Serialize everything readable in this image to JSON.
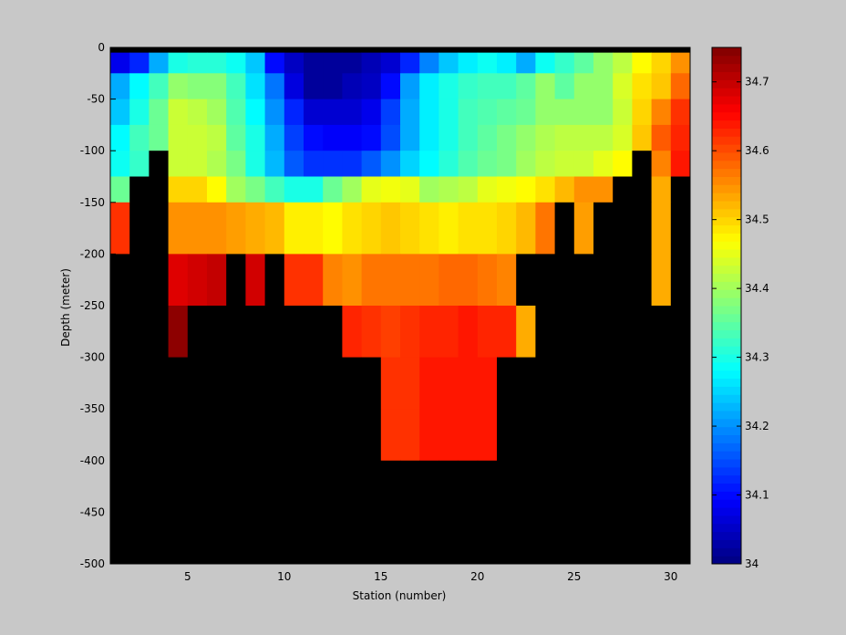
{
  "chart_data": {
    "type": "heatmap",
    "xlabel": "Station (number)",
    "ylabel": "Depth (meter)",
    "xlim": [
      1,
      31
    ],
    "ylim": [
      -500,
      0
    ],
    "x_ticks": [
      5,
      10,
      15,
      20,
      25,
      30
    ],
    "y_ticks": [
      0,
      -50,
      -100,
      -150,
      -200,
      -250,
      -300,
      -350,
      -400,
      -450,
      -500
    ],
    "colorbar": {
      "colormap": "jet",
      "range": [
        34.0,
        34.75
      ],
      "ticks": [
        34,
        34.1,
        34.2,
        34.3,
        34.4,
        34.5,
        34.6,
        34.7
      ],
      "tick_labels": [
        "34",
        "34.1",
        "34.2",
        "34.3",
        "34.4",
        "34.5",
        "34.6",
        "34.7"
      ]
    },
    "no_data_color": "#000000",
    "stations": [
      1,
      2,
      3,
      4,
      5,
      6,
      7,
      8,
      9,
      10,
      11,
      12,
      13,
      14,
      15,
      16,
      17,
      18,
      19,
      20,
      21,
      22,
      23,
      24,
      25,
      26,
      27,
      28,
      29,
      30
    ],
    "depth_bins": [
      {
        "top": 0,
        "bottom": -5
      },
      {
        "top": -5,
        "bottom": -25
      },
      {
        "top": -25,
        "bottom": -50
      },
      {
        "top": -50,
        "bottom": -75
      },
      {
        "top": -75,
        "bottom": -100
      },
      {
        "top": -100,
        "bottom": -125
      },
      {
        "top": -125,
        "bottom": -150
      },
      {
        "top": -150,
        "bottom": -200
      },
      {
        "top": -200,
        "bottom": -250
      },
      {
        "top": -250,
        "bottom": -300
      },
      {
        "top": -300,
        "bottom": -350
      },
      {
        "top": -350,
        "bottom": -400
      },
      {
        "top": -400,
        "bottom": -450
      },
      {
        "top": -450,
        "bottom": -500
      }
    ],
    "salinity": [
      [
        null,
        null,
        null,
        null,
        null,
        null,
        null,
        null,
        null,
        null,
        null,
        null,
        null,
        null,
        null,
        null,
        null,
        null,
        null,
        null,
        null,
        null,
        null,
        null,
        null,
        null,
        null,
        null,
        null,
        null
      ],
      [
        34.08,
        34.12,
        34.22,
        34.3,
        34.31,
        34.31,
        34.29,
        34.24,
        34.1,
        34.05,
        34.02,
        34.02,
        34.02,
        34.04,
        34.06,
        34.12,
        34.19,
        34.24,
        34.27,
        34.29,
        34.27,
        34.22,
        34.29,
        34.32,
        34.35,
        34.39,
        34.42,
        34.47,
        34.5,
        34.55
      ],
      [
        34.22,
        34.28,
        34.33,
        34.39,
        34.38,
        34.38,
        34.33,
        34.26,
        34.18,
        34.07,
        34.02,
        34.02,
        34.04,
        34.05,
        34.1,
        34.21,
        34.27,
        34.3,
        34.32,
        34.33,
        34.33,
        34.35,
        34.39,
        34.35,
        34.39,
        34.39,
        34.44,
        34.49,
        34.51,
        34.58
      ],
      [
        34.24,
        34.3,
        34.36,
        34.43,
        34.42,
        34.4,
        34.34,
        34.28,
        34.2,
        34.12,
        34.06,
        34.06,
        34.06,
        34.08,
        34.14,
        34.22,
        34.27,
        34.3,
        34.33,
        34.34,
        34.35,
        34.36,
        34.39,
        34.39,
        34.39,
        34.39,
        34.43,
        34.5,
        34.56,
        34.62
      ],
      [
        34.28,
        34.33,
        34.36,
        34.43,
        34.43,
        34.42,
        34.35,
        34.3,
        34.22,
        34.14,
        34.1,
        34.09,
        34.09,
        34.1,
        34.15,
        34.22,
        34.27,
        34.3,
        34.33,
        34.35,
        34.37,
        34.39,
        34.41,
        34.42,
        34.42,
        34.42,
        34.44,
        34.51,
        34.59,
        34.63
      ],
      [
        34.29,
        34.32,
        null,
        34.43,
        34.43,
        34.41,
        34.37,
        34.3,
        34.23,
        34.16,
        34.13,
        34.13,
        34.13,
        34.16,
        34.2,
        34.25,
        34.28,
        34.31,
        34.34,
        34.36,
        34.37,
        34.4,
        34.42,
        34.43,
        34.43,
        34.45,
        34.47,
        null,
        34.56,
        34.64
      ],
      [
        34.36,
        null,
        null,
        34.5,
        34.5,
        34.47,
        34.4,
        34.37,
        34.33,
        34.3,
        34.3,
        34.36,
        34.4,
        34.45,
        34.46,
        34.45,
        34.4,
        34.41,
        34.42,
        34.45,
        34.46,
        34.47,
        34.49,
        34.52,
        34.55,
        34.55,
        null,
        null,
        34.53,
        null
      ],
      [
        34.62,
        null,
        null,
        34.55,
        34.55,
        34.55,
        34.54,
        34.53,
        34.52,
        34.48,
        34.48,
        34.47,
        34.49,
        34.5,
        34.51,
        34.5,
        34.49,
        34.48,
        34.49,
        34.49,
        34.5,
        34.52,
        34.57,
        null,
        34.54,
        null,
        null,
        null,
        34.53,
        null
      ],
      [
        null,
        null,
        null,
        34.68,
        34.69,
        34.7,
        null,
        34.69,
        null,
        34.62,
        34.62,
        34.56,
        34.55,
        34.57,
        34.57,
        34.57,
        34.57,
        34.58,
        34.58,
        34.57,
        34.56,
        null,
        null,
        null,
        null,
        null,
        null,
        null,
        34.53,
        null
      ],
      [
        null,
        null,
        null,
        34.74,
        null,
        null,
        null,
        null,
        null,
        null,
        null,
        null,
        34.63,
        34.62,
        34.61,
        34.62,
        34.63,
        34.63,
        34.64,
        34.63,
        34.63,
        34.53,
        null,
        null,
        null,
        null,
        null,
        null,
        null,
        null
      ],
      [
        null,
        null,
        null,
        null,
        null,
        null,
        null,
        null,
        null,
        null,
        null,
        null,
        null,
        null,
        34.62,
        34.62,
        34.64,
        34.64,
        34.64,
        34.64,
        null,
        null,
        null,
        null,
        null,
        null,
        null,
        null,
        null,
        null
      ],
      [
        null,
        null,
        null,
        null,
        null,
        null,
        null,
        null,
        null,
        null,
        null,
        null,
        null,
        null,
        34.62,
        34.62,
        34.64,
        34.64,
        34.64,
        34.64,
        null,
        null,
        null,
        null,
        null,
        null,
        null,
        null,
        null,
        null
      ],
      [
        null,
        null,
        null,
        null,
        null,
        null,
        null,
        null,
        null,
        null,
        null,
        null,
        null,
        null,
        null,
        null,
        null,
        null,
        null,
        null,
        null,
        null,
        null,
        null,
        null,
        null,
        null,
        null,
        null,
        null
      ],
      [
        null,
        null,
        null,
        null,
        null,
        null,
        null,
        null,
        null,
        null,
        null,
        null,
        null,
        null,
        null,
        null,
        null,
        null,
        null,
        null,
        null,
        null,
        null,
        null,
        null,
        null,
        null,
        null,
        null,
        null
      ]
    ]
  }
}
